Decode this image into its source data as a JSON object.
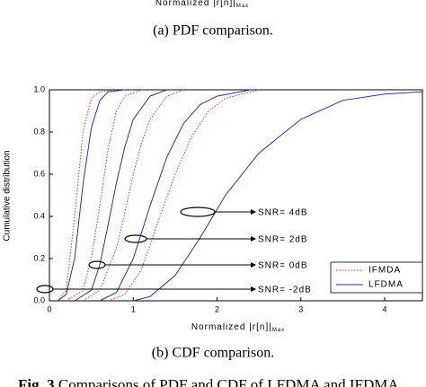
{
  "top_label": {
    "text": "Normalized |r[n]|",
    "sub": "Max"
  },
  "caption_a": "(a) PDF comparison.",
  "chart_data": {
    "type": "line",
    "ylabel": "Cumulative distribution",
    "xlabel": "Normalized |r[n]|",
    "xlabel_sub": "Max",
    "xlim": [
      0,
      4.45
    ],
    "ylim": [
      0,
      1
    ],
    "xticks": [
      0,
      1,
      2,
      3,
      4
    ],
    "yticks": [
      {
        "value": 0,
        "label": "0.0"
      },
      {
        "value": 0.2,
        "label": "0.2"
      },
      {
        "value": 0.4,
        "label": "0.4"
      },
      {
        "value": 0.6,
        "label": "0.6"
      },
      {
        "value": 0.8,
        "label": "0.8"
      },
      {
        "value": 1,
        "label": "1.0"
      }
    ],
    "legend": "lower right",
    "series": [
      {
        "name": "IFMDA",
        "color": "#e03030",
        "style": "dotted",
        "curves": [
          {
            "x": [
              0.1,
              0.2,
              0.3,
              0.4,
              0.5,
              0.6,
              0.8
            ],
            "values": [
              0,
              0.05,
              0.4,
              0.8,
              0.96,
              0.99,
              1.0
            ]
          },
          {
            "x": [
              0.2,
              0.4,
              0.5,
              0.6,
              0.7,
              0.8,
              0.9,
              1.1
            ],
            "values": [
              0,
              0.05,
              0.2,
              0.45,
              0.72,
              0.9,
              0.97,
              1.0
            ]
          },
          {
            "x": [
              0.4,
              0.6,
              0.8,
              0.9,
              1.0,
              1.1,
              1.2,
              1.4,
              1.6
            ],
            "values": [
              0,
              0.05,
              0.25,
              0.42,
              0.6,
              0.75,
              0.86,
              0.97,
              1.0
            ]
          },
          {
            "x": [
              0.7,
              0.9,
              1.1,
              1.3,
              1.5,
              1.7,
              1.9,
              2.1,
              2.5
            ],
            "values": [
              0,
              0.03,
              0.15,
              0.38,
              0.6,
              0.78,
              0.9,
              0.96,
              1.0
            ]
          }
        ]
      },
      {
        "name": "LFDMA",
        "color": "#30309a",
        "style": "solid",
        "curves": [
          {
            "x": [
              0.1,
              0.2,
              0.3,
              0.4,
              0.5,
              0.6,
              0.7,
              0.9
            ],
            "values": [
              0,
              0.03,
              0.2,
              0.55,
              0.82,
              0.95,
              0.99,
              1.0
            ]
          },
          {
            "x": [
              0.3,
              0.5,
              0.6,
              0.7,
              0.8,
              0.9,
              1.0,
              1.2,
              1.4
            ],
            "values": [
              0,
              0.05,
              0.17,
              0.36,
              0.56,
              0.73,
              0.86,
              0.97,
              1.0
            ]
          },
          {
            "x": [
              0.6,
              0.8,
              1.0,
              1.2,
              1.4,
              1.6,
              1.8,
              2.0,
              2.4
            ],
            "values": [
              0,
              0.04,
              0.2,
              0.45,
              0.68,
              0.84,
              0.93,
              0.97,
              1.0
            ]
          },
          {
            "x": [
              1.0,
              1.2,
              1.5,
              1.8,
              2.1,
              2.5,
              3.0,
              3.5,
              4.0,
              4.45
            ],
            "values": [
              0,
              0.02,
              0.12,
              0.3,
              0.5,
              0.7,
              0.86,
              0.95,
              0.98,
              0.99
            ]
          }
        ]
      }
    ],
    "annotations": [
      "SNR= 4dB",
      "SNR= 2dB",
      "SNR= 0dB",
      "SNR= -2dB"
    ]
  },
  "caption_b": "(b) CDF comparison.",
  "figure_caption": {
    "label": "Fig. 3",
    "text": " Comparisons of PDF and CDF of LFDMA and IFDMA"
  }
}
